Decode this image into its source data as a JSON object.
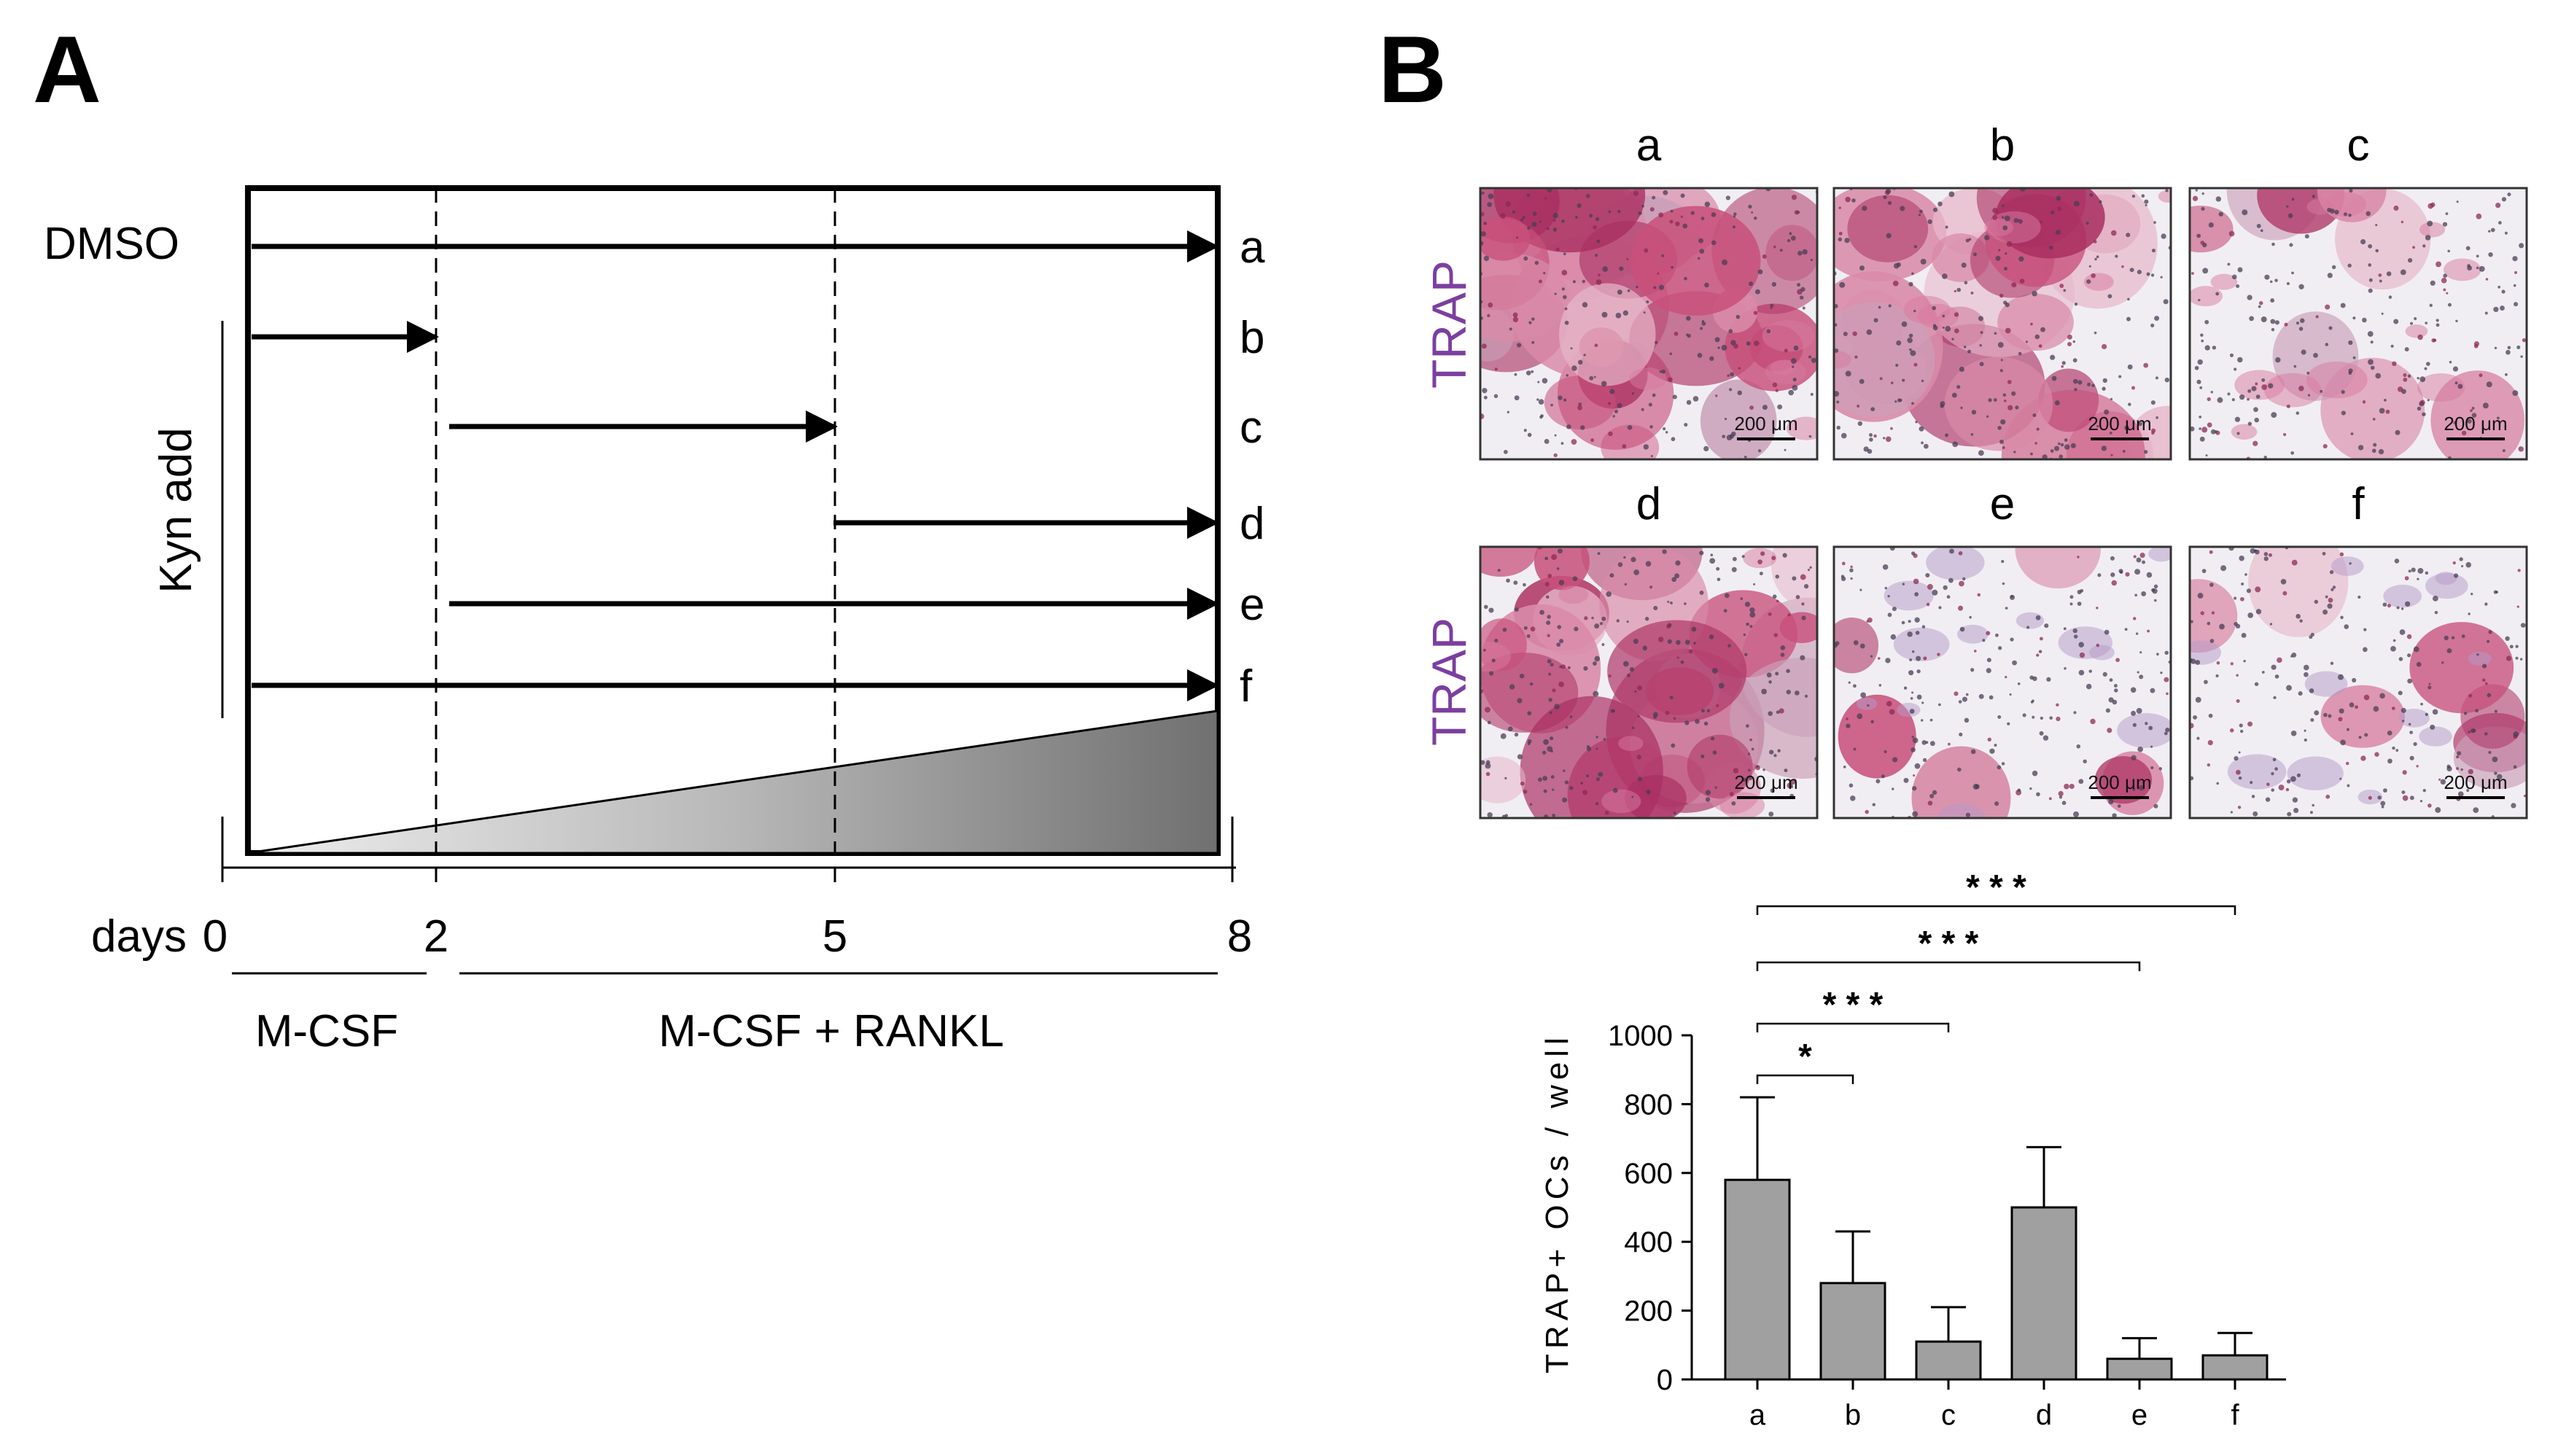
{
  "panel_a": {
    "label": "A",
    "dmso_label": "DMSO",
    "kyn_label": "Kyn add",
    "rows": [
      "a",
      "b",
      "c",
      "d",
      "e",
      "f"
    ],
    "days_label": "days",
    "day_ticks": [
      "0",
      "2",
      "5",
      "8"
    ],
    "day_values": [
      0,
      2,
      5,
      8
    ],
    "arrows": [
      {
        "row": "a",
        "start_day": 0,
        "end_day": 8
      },
      {
        "row": "b",
        "start_day": 0,
        "end_day": 2
      },
      {
        "row": "c",
        "start_day": 2,
        "end_day": 5
      },
      {
        "row": "d",
        "start_day": 5,
        "end_day": 8
      },
      {
        "row": "e",
        "start_day": 2,
        "end_day": 8
      },
      {
        "row": "f",
        "start_day": 0,
        "end_day": 8
      }
    ],
    "phase_labels": [
      "M-CSF",
      "M-CSF + RANKL"
    ]
  },
  "panel_b": {
    "label": "B",
    "stain_label": "TRAP",
    "image_labels": [
      "a",
      "b",
      "c",
      "d",
      "e",
      "f"
    ],
    "scale_bar": "200 μm",
    "density": [
      0.9,
      0.75,
      0.25,
      0.85,
      0.2,
      0.22
    ],
    "stain_color": "#7b3fa0",
    "tissue_color": "#b8356a"
  },
  "chart_data": {
    "type": "bar",
    "categories": [
      "a",
      "b",
      "c",
      "d",
      "e",
      "f"
    ],
    "values": [
      580,
      280,
      110,
      500,
      60,
      70
    ],
    "errors": [
      240,
      150,
      100,
      175,
      60,
      65
    ],
    "ylabel": "TRAP+ OCs / well",
    "ylim": [
      0,
      1000
    ],
    "yticks": [
      "0",
      "200",
      "400",
      "600",
      "800",
      "1000"
    ],
    "bar_color": "#a0a0a0",
    "significance": [
      {
        "from": "a",
        "to": "b",
        "label": "*"
      },
      {
        "from": "a",
        "to": "c",
        "label": "* * *"
      },
      {
        "from": "a",
        "to": "e",
        "label": "* * *"
      },
      {
        "from": "a",
        "to": "f",
        "label": "* * *"
      }
    ]
  }
}
